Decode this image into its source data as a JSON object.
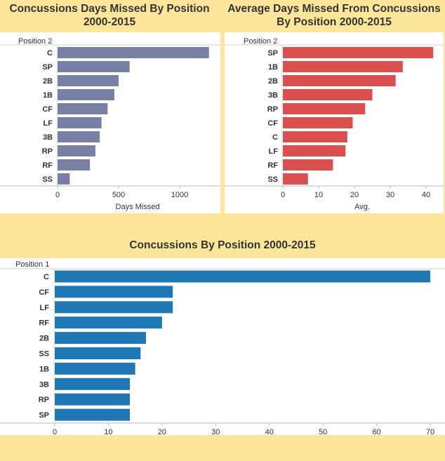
{
  "chart_data": [
    {
      "id": "c1",
      "type": "bar",
      "orientation": "horizontal",
      "title": "Concussions Days Missed By Position 2000-2015",
      "dimension_label": "Position 2",
      "xlabel": "Days Missed",
      "categories": [
        "C",
        "SP",
        "2B",
        "1B",
        "CF",
        "LF",
        "3B",
        "RP",
        "RF",
        "SS"
      ],
      "values": [
        1240,
        590,
        500,
        465,
        410,
        360,
        345,
        310,
        265,
        100
      ],
      "xlim": [
        0,
        1250
      ],
      "xticks": [
        0,
        500,
        1000
      ],
      "color": "#7880a6",
      "grid": false
    },
    {
      "id": "c2",
      "type": "bar",
      "orientation": "horizontal",
      "title": "Average Days Missed From Concussions By Position 2000-2015",
      "dimension_label": "Position 2",
      "xlabel": "Avg.",
      "categories": [
        "SP",
        "1B",
        "2B",
        "3B",
        "RP",
        "CF",
        "C",
        "LF",
        "RF",
        "SS"
      ],
      "values": [
        42,
        33.5,
        31.5,
        25,
        23,
        19.5,
        18,
        17.5,
        14,
        7
      ],
      "xlim": [
        0,
        43
      ],
      "xticks": [
        0,
        10,
        20,
        30,
        40
      ],
      "color": "#db4f4f",
      "grid": false
    },
    {
      "id": "c3",
      "type": "bar",
      "orientation": "horizontal",
      "title": "Concussions By Position 2000-2015",
      "dimension_label": "Position 1",
      "xlabel": "",
      "categories": [
        "C",
        "CF",
        "LF",
        "RF",
        "2B",
        "SS",
        "1B",
        "3B",
        "RP",
        "SP"
      ],
      "values": [
        70,
        22,
        22,
        20,
        17,
        16,
        15,
        14,
        14,
        14
      ],
      "xlim": [
        0,
        72
      ],
      "xticks": [
        0,
        10,
        20,
        30,
        40,
        50,
        60,
        70
      ],
      "color": "#1f77b4",
      "grid": false
    }
  ]
}
